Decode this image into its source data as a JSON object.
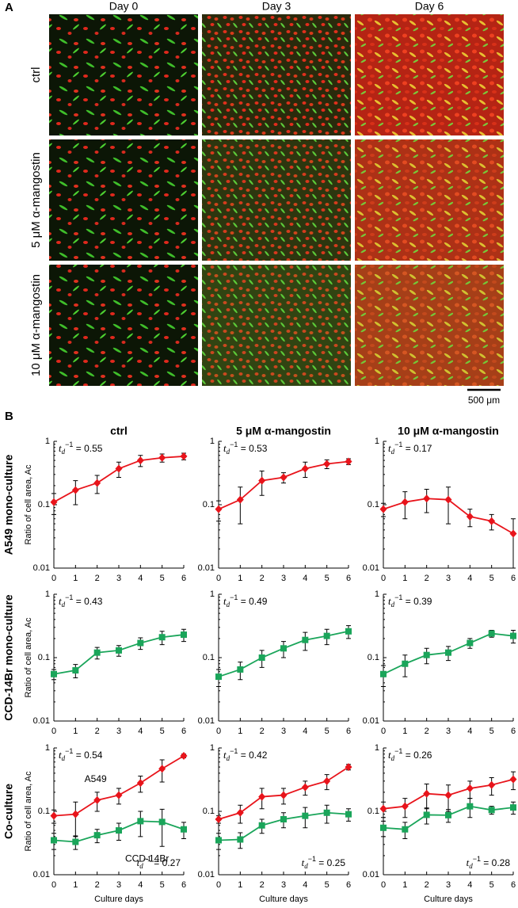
{
  "panel_a": {
    "label": "A",
    "columns": [
      "Day 0",
      "Day 3",
      "Day 6"
    ],
    "rows": [
      "ctrl",
      "5 μM α-mangostin",
      "10 μM α-mangostin"
    ],
    "scale_bar": "500 μm"
  },
  "panel_b": {
    "label": "B",
    "columns": [
      "ctrl",
      "5 μM α-mangostin",
      "10 μM α-mangostin"
    ],
    "rows": [
      "A549 mono-culture",
      "CCD-14Br mono-culture",
      "Co-culture"
    ]
  },
  "chart_data": [
    {
      "type": "line",
      "ylabel": "Ratio of cell area, Ac",
      "x": [
        0,
        1,
        2,
        3,
        4,
        5,
        6
      ],
      "xlim": [
        0,
        6
      ],
      "xticks": [
        0,
        1,
        2,
        3,
        4,
        5,
        6
      ],
      "ylim": [
        0.01,
        1
      ],
      "yticks": [
        0.01,
        0.1,
        1
      ],
      "log_y": true,
      "series": [
        {
          "color": "#e8141b",
          "marker": "diamond",
          "values": [
            0.11,
            0.17,
            0.22,
            0.37,
            0.5,
            0.55,
            0.58
          ],
          "errors": [
            0.04,
            0.07,
            0.07,
            0.1,
            0.1,
            0.08,
            0.07
          ]
        }
      ],
      "annotations": [
        {
          "symbol": "t",
          "sub": "d",
          "sup": "−1",
          "text": " = 0.55",
          "position": "top-left"
        }
      ]
    },
    {
      "type": "line",
      "x": [
        0,
        1,
        2,
        3,
        4,
        5,
        6
      ],
      "xlim": [
        0,
        6
      ],
      "xticks": [
        0,
        1,
        2,
        3,
        4,
        5,
        6
      ],
      "ylim": [
        0.01,
        1
      ],
      "yticks": [
        0.01,
        0.1,
        1
      ],
      "log_y": true,
      "series": [
        {
          "color": "#e8141b",
          "marker": "diamond",
          "values": [
            0.085,
            0.12,
            0.24,
            0.27,
            0.37,
            0.44,
            0.48
          ],
          "errors": [
            0.03,
            0.07,
            0.1,
            0.05,
            0.1,
            0.07,
            0.05
          ]
        }
      ],
      "annotations": [
        {
          "symbol": "t",
          "sub": "d",
          "sup": "−1",
          "text": " = 0.53",
          "position": "top-left"
        }
      ]
    },
    {
      "type": "line",
      "x": [
        0,
        1,
        2,
        3,
        4,
        5,
        6
      ],
      "xlim": [
        0,
        6
      ],
      "xticks": [
        0,
        1,
        2,
        3,
        4,
        5,
        6
      ],
      "ylim": [
        0.01,
        1
      ],
      "yticks": [
        0.01,
        0.1,
        1
      ],
      "log_y": true,
      "series": [
        {
          "color": "#e8141b",
          "marker": "diamond",
          "values": [
            0.085,
            0.11,
            0.125,
            0.12,
            0.065,
            0.055,
            0.035
          ],
          "errors": [
            0.02,
            0.05,
            0.05,
            0.07,
            0.02,
            0.015,
            0.025
          ]
        }
      ],
      "annotations": [
        {
          "symbol": "t",
          "sub": "d",
          "sup": "−1",
          "text": " = 0.17",
          "position": "top-left"
        }
      ]
    },
    {
      "type": "line",
      "ylabel": "Ratio of cell area, Ac",
      "x": [
        0,
        1,
        2,
        3,
        4,
        5,
        6
      ],
      "xlim": [
        0,
        6
      ],
      "xticks": [
        0,
        1,
        2,
        3,
        4,
        5,
        6
      ],
      "ylim": [
        0.01,
        1
      ],
      "yticks": [
        0.01,
        0.1,
        1
      ],
      "log_y": true,
      "series": [
        {
          "color": "#1aa55a",
          "marker": "square",
          "values": [
            0.055,
            0.063,
            0.12,
            0.13,
            0.17,
            0.21,
            0.23
          ],
          "errors": [
            0.01,
            0.015,
            0.025,
            0.025,
            0.035,
            0.05,
            0.05
          ]
        }
      ],
      "annotations": [
        {
          "symbol": "t",
          "sub": "d",
          "sup": "−1",
          "text": " = 0.43",
          "position": "top-left"
        }
      ]
    },
    {
      "type": "line",
      "x": [
        0,
        1,
        2,
        3,
        4,
        5,
        6
      ],
      "xlim": [
        0,
        6
      ],
      "xticks": [
        0,
        1,
        2,
        3,
        4,
        5,
        6
      ],
      "ylim": [
        0.01,
        1
      ],
      "yticks": [
        0.01,
        0.1,
        1
      ],
      "log_y": true,
      "series": [
        {
          "color": "#1aa55a",
          "marker": "square",
          "values": [
            0.05,
            0.065,
            0.1,
            0.14,
            0.19,
            0.22,
            0.26
          ],
          "errors": [
            0.015,
            0.02,
            0.03,
            0.04,
            0.06,
            0.06,
            0.06
          ]
        }
      ],
      "annotations": [
        {
          "symbol": "t",
          "sub": "d",
          "sup": "−1",
          "text": " = 0.49",
          "position": "top-left"
        }
      ]
    },
    {
      "type": "line",
      "x": [
        0,
        1,
        2,
        3,
        4,
        5,
        6
      ],
      "xlim": [
        0,
        6
      ],
      "xticks": [
        0,
        1,
        2,
        3,
        4,
        5,
        6
      ],
      "ylim": [
        0.01,
        1
      ],
      "yticks": [
        0.01,
        0.1,
        1
      ],
      "log_y": true,
      "series": [
        {
          "color": "#1aa55a",
          "marker": "square",
          "values": [
            0.055,
            0.08,
            0.11,
            0.12,
            0.17,
            0.24,
            0.22
          ],
          "errors": [
            0.02,
            0.03,
            0.03,
            0.03,
            0.03,
            0.03,
            0.05
          ]
        }
      ],
      "annotations": [
        {
          "symbol": "t",
          "sub": "d",
          "sup": "−1",
          "text": " = 0.39",
          "position": "top-left"
        }
      ]
    },
    {
      "type": "line",
      "ylabel": "Ratio of cell area, Ac",
      "xlabel": "Culture days",
      "x": [
        0,
        1,
        2,
        3,
        4,
        5,
        6
      ],
      "xlim": [
        0,
        6
      ],
      "xticks": [
        0,
        1,
        2,
        3,
        4,
        5,
        6
      ],
      "ylim": [
        0.01,
        1
      ],
      "yticks": [
        0.01,
        0.1,
        1
      ],
      "log_y": true,
      "series": [
        {
          "name": "A549",
          "color": "#e8141b",
          "marker": "diamond",
          "values": [
            0.085,
            0.09,
            0.15,
            0.18,
            0.28,
            0.47,
            0.75
          ],
          "errors": [
            0.02,
            0.05,
            0.05,
            0.05,
            0.08,
            0.18,
            0.05
          ]
        },
        {
          "name": "CCD-14Br",
          "color": "#1aa55a",
          "marker": "square",
          "values": [
            0.035,
            0.033,
            0.042,
            0.05,
            0.07,
            0.068,
            0.052
          ],
          "errors": [
            0.01,
            0.008,
            0.01,
            0.015,
            0.03,
            0.04,
            0.015
          ]
        }
      ],
      "annotations": [
        {
          "symbol": "t",
          "sub": "d",
          "sup": "−1",
          "text": " = 0.54",
          "position": "top-left"
        },
        {
          "symbol": "t",
          "sub": "d",
          "sup": "−1",
          "text": " = 0.27",
          "position": "bottom-right"
        }
      ]
    },
    {
      "type": "line",
      "xlabel": "Culture days",
      "x": [
        0,
        1,
        2,
        3,
        4,
        5,
        6
      ],
      "xlim": [
        0,
        6
      ],
      "xticks": [
        0,
        1,
        2,
        3,
        4,
        5,
        6
      ],
      "ylim": [
        0.01,
        1
      ],
      "yticks": [
        0.01,
        0.1,
        1
      ],
      "log_y": true,
      "series": [
        {
          "color": "#e8141b",
          "marker": "diamond",
          "values": [
            0.075,
            0.095,
            0.17,
            0.18,
            0.24,
            0.3,
            0.5
          ],
          "errors": [
            0.01,
            0.03,
            0.06,
            0.05,
            0.06,
            0.08,
            0.05
          ]
        },
        {
          "color": "#1aa55a",
          "marker": "square",
          "values": [
            0.035,
            0.036,
            0.06,
            0.075,
            0.085,
            0.095,
            0.09
          ],
          "errors": [
            0.01,
            0.01,
            0.015,
            0.02,
            0.03,
            0.03,
            0.02
          ]
        }
      ],
      "annotations": [
        {
          "symbol": "t",
          "sub": "d",
          "sup": "−1",
          "text": " = 0.42",
          "position": "top-left"
        },
        {
          "symbol": "t",
          "sub": "d",
          "sup": "−1",
          "text": " = 0.25",
          "position": "bottom-right"
        }
      ]
    },
    {
      "type": "line",
      "xlabel": "Culture days",
      "x": [
        0,
        1,
        2,
        3,
        4,
        5,
        6
      ],
      "xlim": [
        0,
        6
      ],
      "xticks": [
        0,
        1,
        2,
        3,
        4,
        5,
        6
      ],
      "ylim": [
        0.01,
        1
      ],
      "yticks": [
        0.01,
        0.1,
        1
      ],
      "log_y": true,
      "series": [
        {
          "color": "#e8141b",
          "marker": "diamond",
          "values": [
            0.11,
            0.12,
            0.19,
            0.18,
            0.23,
            0.26,
            0.32
          ],
          "errors": [
            0.03,
            0.04,
            0.08,
            0.08,
            0.07,
            0.08,
            0.1
          ]
        },
        {
          "color": "#1aa55a",
          "marker": "square",
          "values": [
            0.055,
            0.052,
            0.088,
            0.087,
            0.12,
            0.105,
            0.115
          ],
          "errors": [
            0.015,
            0.015,
            0.025,
            0.02,
            0.04,
            0.015,
            0.025
          ]
        }
      ],
      "annotations": [
        {
          "symbol": "t",
          "sub": "d",
          "sup": "−1",
          "text": " = 0.26",
          "position": "top-left"
        },
        {
          "symbol": "t",
          "sub": "d",
          "sup": "−1",
          "text": " = 0.28",
          "position": "bottom-right"
        }
      ]
    }
  ]
}
